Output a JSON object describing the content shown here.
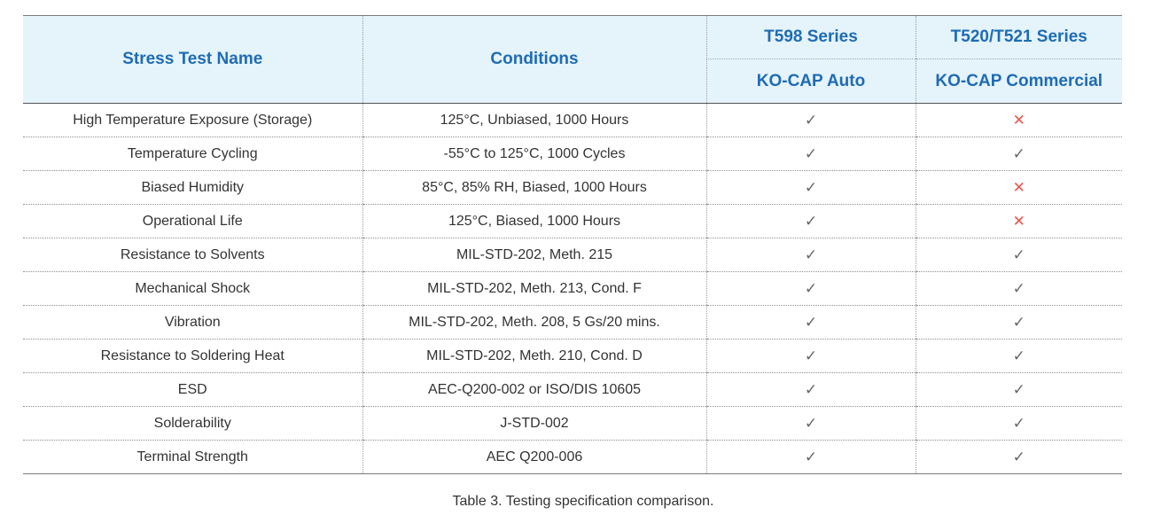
{
  "table": {
    "headers": {
      "test_name": "Stress Test Name",
      "conditions": "Conditions",
      "series_a": "T598 Series",
      "series_b": "T520/T521 Series",
      "product_a": "KO-CAP Auto",
      "product_b": "KO-CAP Commercial"
    },
    "rows": [
      {
        "name": "High Temperature Exposure (Storage)",
        "conditions": "125°C, Unbiased, 1000 Hours",
        "a": "✓",
        "b": "✕"
      },
      {
        "name": "Temperature Cycling",
        "conditions": "-55°C to 125°C, 1000 Cycles",
        "a": "✓",
        "b": "✓"
      },
      {
        "name": "Biased Humidity",
        "conditions": "85°C, 85% RH, Biased, 1000 Hours",
        "a": "✓",
        "b": "✕"
      },
      {
        "name": "Operational Life",
        "conditions": "125°C, Biased, 1000 Hours",
        "a": "✓",
        "b": "✕"
      },
      {
        "name": "Resistance to Solvents",
        "conditions": "MIL-STD-202, Meth. 215",
        "a": "✓",
        "b": "✓"
      },
      {
        "name": "Mechanical Shock",
        "conditions": "MIL-STD-202, Meth. 213, Cond. F",
        "a": "✓",
        "b": "✓"
      },
      {
        "name": "Vibration",
        "conditions": "MIL-STD-202, Meth. 208, 5 Gs/20 mins.",
        "a": "✓",
        "b": "✓"
      },
      {
        "name": "Resistance to Soldering Heat",
        "conditions": "MIL-STD-202, Meth. 210, Cond. D",
        "a": "✓",
        "b": "✓"
      },
      {
        "name": "ESD",
        "conditions": "AEC-Q200-002 or ISO/DIS 10605",
        "a": "✓",
        "b": "✓"
      },
      {
        "name": "Solderability",
        "conditions": "J-STD-002",
        "a": "✓",
        "b": "✓"
      },
      {
        "name": "Terminal Strength",
        "conditions": "AEC Q200-006",
        "a": "✓",
        "b": "✓"
      }
    ]
  },
  "colors": {
    "header_background": "#e5f3fb",
    "header_text": "#1e6cb3",
    "check_mark": "#666666",
    "cross_mark": "#e8574c"
  },
  "icons": {
    "yes": "check-icon",
    "no": "cross-icon"
  },
  "caption": "Table 3. Testing specification comparison."
}
